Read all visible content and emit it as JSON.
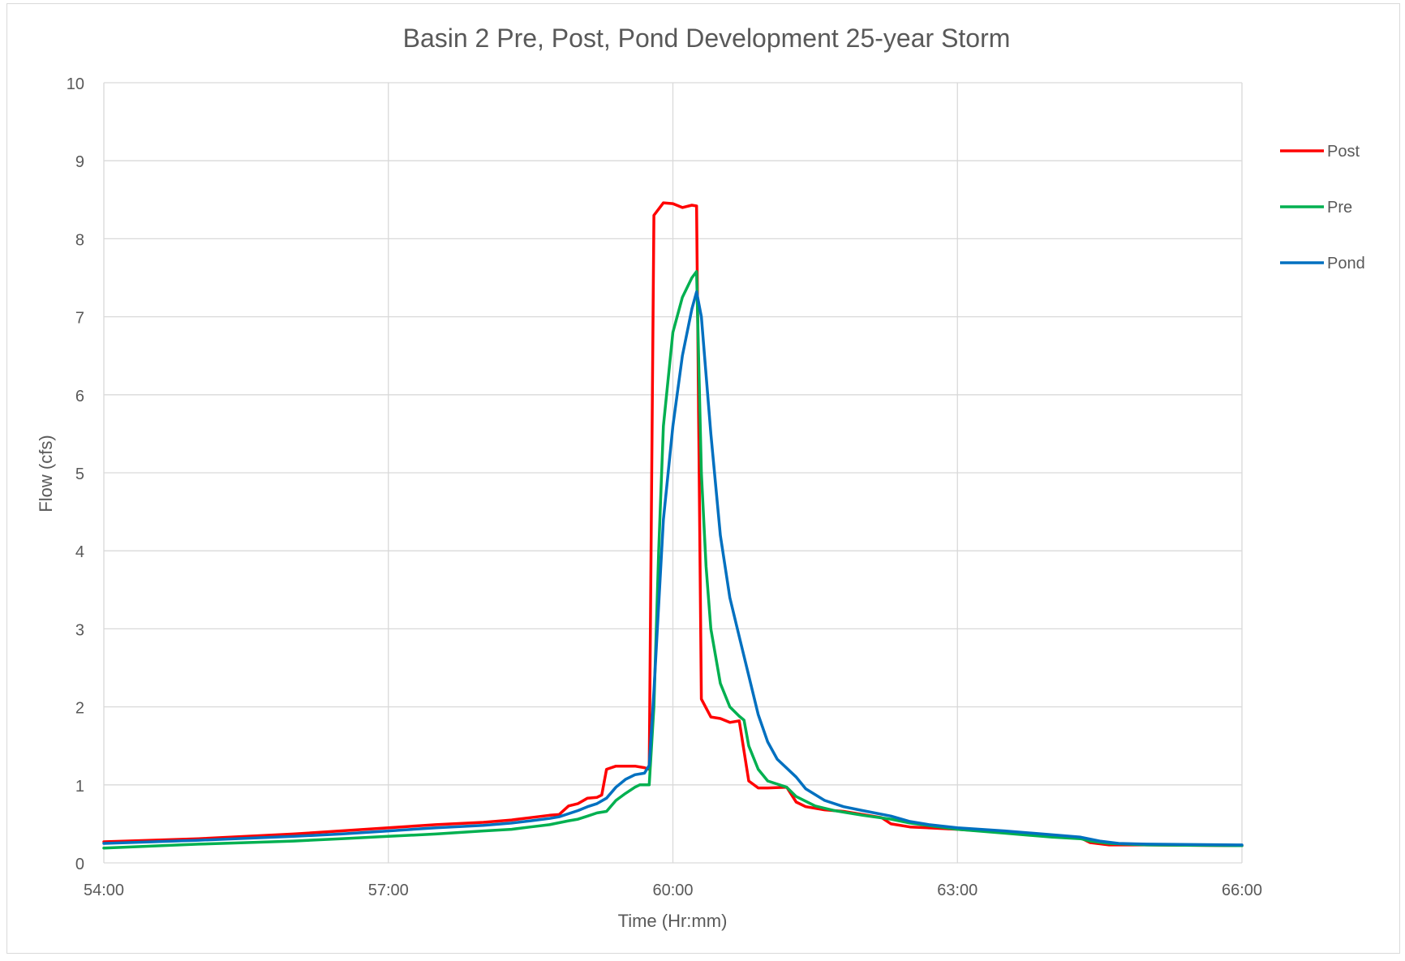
{
  "chart_data": {
    "type": "line",
    "title": "Basin 2 Pre, Post, Pond Development 25-year Storm",
    "xlabel": "Time (Hr:mm)",
    "ylabel": "Flow (cfs)",
    "x_unit": "hours",
    "xlim": [
      54,
      66
    ],
    "ylim": [
      0,
      10
    ],
    "x_ticks": [
      {
        "value": 54,
        "label": "54:00"
      },
      {
        "value": 57,
        "label": "57:00"
      },
      {
        "value": 60,
        "label": "60:00"
      },
      {
        "value": 63,
        "label": "63:00"
      },
      {
        "value": 66,
        "label": "66:00"
      }
    ],
    "y_ticks": [
      0,
      1,
      2,
      3,
      4,
      5,
      6,
      7,
      8,
      9,
      10
    ],
    "grid": true,
    "legend_position": "right",
    "series": [
      {
        "name": "Post",
        "color": "#ff0000",
        "points": [
          [
            54.0,
            0.27
          ],
          [
            55.0,
            0.31
          ],
          [
            56.0,
            0.37
          ],
          [
            57.0,
            0.45
          ],
          [
            57.5,
            0.49
          ],
          [
            58.0,
            0.52
          ],
          [
            58.3,
            0.55
          ],
          [
            58.5,
            0.58
          ],
          [
            58.7,
            0.61
          ],
          [
            58.8,
            0.62
          ],
          [
            58.9,
            0.73
          ],
          [
            59.0,
            0.76
          ],
          [
            59.1,
            0.83
          ],
          [
            59.2,
            0.84
          ],
          [
            59.25,
            0.87
          ],
          [
            59.3,
            1.2
          ],
          [
            59.4,
            1.24
          ],
          [
            59.6,
            1.24
          ],
          [
            59.7,
            1.22
          ],
          [
            59.75,
            1.2
          ],
          [
            59.8,
            8.3
          ],
          [
            59.9,
            8.46
          ],
          [
            60.0,
            8.45
          ],
          [
            60.1,
            8.4
          ],
          [
            60.2,
            8.43
          ],
          [
            60.25,
            8.42
          ],
          [
            60.3,
            2.1
          ],
          [
            60.4,
            1.87
          ],
          [
            60.5,
            1.85
          ],
          [
            60.6,
            1.8
          ],
          [
            60.7,
            1.82
          ],
          [
            60.8,
            1.05
          ],
          [
            60.9,
            0.96
          ],
          [
            61.0,
            0.96
          ],
          [
            61.2,
            0.97
          ],
          [
            61.3,
            0.78
          ],
          [
            61.4,
            0.72
          ],
          [
            61.6,
            0.68
          ],
          [
            61.8,
            0.66
          ],
          [
            62.0,
            0.62
          ],
          [
            62.2,
            0.58
          ],
          [
            62.3,
            0.5
          ],
          [
            62.5,
            0.46
          ],
          [
            63.0,
            0.43
          ],
          [
            63.5,
            0.39
          ],
          [
            64.0,
            0.34
          ],
          [
            64.3,
            0.32
          ],
          [
            64.4,
            0.26
          ],
          [
            64.6,
            0.23
          ],
          [
            65.0,
            0.23
          ],
          [
            66.0,
            0.22
          ]
        ]
      },
      {
        "name": "Pre",
        "color": "#00b050",
        "points": [
          [
            54.0,
            0.19
          ],
          [
            55.0,
            0.24
          ],
          [
            56.0,
            0.28
          ],
          [
            56.5,
            0.31
          ],
          [
            57.0,
            0.34
          ],
          [
            57.5,
            0.37
          ],
          [
            58.0,
            0.41
          ],
          [
            58.3,
            0.43
          ],
          [
            58.5,
            0.46
          ],
          [
            58.7,
            0.49
          ],
          [
            58.9,
            0.54
          ],
          [
            59.0,
            0.56
          ],
          [
            59.1,
            0.6
          ],
          [
            59.2,
            0.64
          ],
          [
            59.3,
            0.66
          ],
          [
            59.4,
            0.8
          ],
          [
            59.5,
            0.89
          ],
          [
            59.6,
            0.97
          ],
          [
            59.65,
            1.0
          ],
          [
            59.75,
            1.0
          ],
          [
            59.8,
            2.0
          ],
          [
            59.85,
            4.0
          ],
          [
            59.9,
            5.6
          ],
          [
            60.0,
            6.8
          ],
          [
            60.1,
            7.25
          ],
          [
            60.2,
            7.5
          ],
          [
            60.25,
            7.58
          ],
          [
            60.3,
            5.0
          ],
          [
            60.35,
            3.8
          ],
          [
            60.4,
            3.0
          ],
          [
            60.5,
            2.3
          ],
          [
            60.6,
            2.0
          ],
          [
            60.7,
            1.88
          ],
          [
            60.75,
            1.83
          ],
          [
            60.8,
            1.5
          ],
          [
            60.9,
            1.2
          ],
          [
            61.0,
            1.05
          ],
          [
            61.2,
            0.97
          ],
          [
            61.3,
            0.85
          ],
          [
            61.5,
            0.73
          ],
          [
            61.7,
            0.67
          ],
          [
            62.0,
            0.61
          ],
          [
            62.3,
            0.56
          ],
          [
            62.5,
            0.51
          ],
          [
            63.0,
            0.43
          ],
          [
            63.5,
            0.38
          ],
          [
            64.0,
            0.33
          ],
          [
            64.3,
            0.31
          ],
          [
            64.4,
            0.28
          ],
          [
            64.6,
            0.25
          ],
          [
            65.0,
            0.23
          ],
          [
            66.0,
            0.22
          ]
        ]
      },
      {
        "name": "Pond",
        "color": "#0070c0",
        "points": [
          [
            54.0,
            0.25
          ],
          [
            55.0,
            0.29
          ],
          [
            56.0,
            0.34
          ],
          [
            56.5,
            0.37
          ],
          [
            57.0,
            0.41
          ],
          [
            57.5,
            0.45
          ],
          [
            58.0,
            0.48
          ],
          [
            58.3,
            0.51
          ],
          [
            58.5,
            0.54
          ],
          [
            58.7,
            0.57
          ],
          [
            58.8,
            0.59
          ],
          [
            59.0,
            0.67
          ],
          [
            59.1,
            0.72
          ],
          [
            59.2,
            0.76
          ],
          [
            59.3,
            0.83
          ],
          [
            59.4,
            0.97
          ],
          [
            59.5,
            1.07
          ],
          [
            59.6,
            1.13
          ],
          [
            59.7,
            1.15
          ],
          [
            59.75,
            1.25
          ],
          [
            59.8,
            2.2
          ],
          [
            59.9,
            4.4
          ],
          [
            60.0,
            5.6
          ],
          [
            60.1,
            6.5
          ],
          [
            60.2,
            7.1
          ],
          [
            60.25,
            7.32
          ],
          [
            60.3,
            7.0
          ],
          [
            60.4,
            5.5
          ],
          [
            60.5,
            4.2
          ],
          [
            60.6,
            3.4
          ],
          [
            60.7,
            2.9
          ],
          [
            60.8,
            2.4
          ],
          [
            60.9,
            1.9
          ],
          [
            61.0,
            1.55
          ],
          [
            61.1,
            1.33
          ],
          [
            61.3,
            1.1
          ],
          [
            61.4,
            0.95
          ],
          [
            61.6,
            0.8
          ],
          [
            61.8,
            0.72
          ],
          [
            62.0,
            0.67
          ],
          [
            62.3,
            0.6
          ],
          [
            62.5,
            0.53
          ],
          [
            62.7,
            0.49
          ],
          [
            63.0,
            0.45
          ],
          [
            63.5,
            0.41
          ],
          [
            64.0,
            0.36
          ],
          [
            64.3,
            0.33
          ],
          [
            64.5,
            0.28
          ],
          [
            64.7,
            0.25
          ],
          [
            65.0,
            0.24
          ],
          [
            66.0,
            0.23
          ]
        ]
      }
    ]
  }
}
